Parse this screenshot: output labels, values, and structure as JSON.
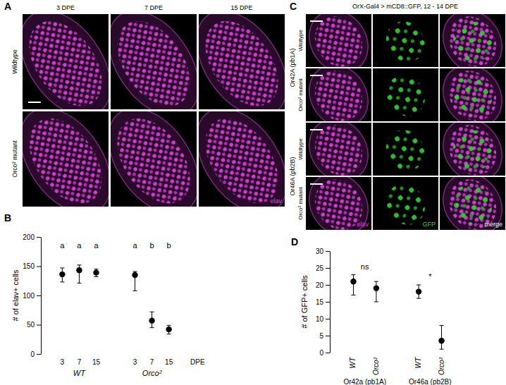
{
  "panels": [
    {
      "label": "A",
      "columns": [
        "3 DPE",
        "7 DPE",
        "15 DPE"
      ],
      "rows": [
        "Wildtype",
        "Orco² mutant"
      ],
      "channels": [
        "elav"
      ]
    },
    {
      "label": "C",
      "title": "OrX-Gal4 > mCD8::GFP, 12 - 14 DPE",
      "columns": [
        "elav",
        "GFP",
        "merge"
      ],
      "groups": [
        "Or42A (pb1A)",
        "Or46A (pb2B)"
      ],
      "rows": [
        "Wildtype",
        "Orco² mutant"
      ]
    }
  ],
  "chart_data": [
    {
      "title": "B",
      "type": "scatter",
      "marker": "circle",
      "y_label": "# of elav+ cells",
      "x_label": "DPE",
      "categories": [
        "3",
        "7",
        "15"
      ],
      "ylim": [
        0,
        200
      ],
      "yticks": [
        0,
        50,
        100,
        150,
        200
      ],
      "series": [
        {
          "name": "WT",
          "color": "#000000",
          "values": [
            136,
            143,
            139
          ],
          "lower": [
            123,
            121,
            132
          ],
          "upper": [
            147,
            152,
            145
          ],
          "annotations": [
            "a",
            "a",
            "a"
          ]
        },
        {
          "name": "Orco²",
          "color": "#000000",
          "values": [
            135,
            57,
            42
          ],
          "lower": [
            108,
            45,
            34
          ],
          "upper": [
            141,
            72,
            49
          ],
          "annotations": [
            "a",
            "b",
            "b"
          ]
        }
      ]
    },
    {
      "title": "D",
      "type": "scatter",
      "marker": "circle",
      "y_label": "# of GFP+ cells",
      "categories": [
        "WT",
        "Orco²"
      ],
      "ylim": [
        0,
        30
      ],
      "yticks": [
        0,
        5,
        10,
        15,
        20,
        25,
        30
      ],
      "series": [
        {
          "name": "Or42a (pb1A)",
          "color": "#000000",
          "values": [
            21,
            19
          ],
          "lower": [
            17,
            15
          ],
          "upper": [
            23,
            21
          ],
          "annotation": "ns"
        },
        {
          "name": "Or46a (pb2B)",
          "color": "#000000",
          "values": [
            18,
            3.5
          ],
          "lower": [
            16,
            1
          ],
          "upper": [
            20,
            8
          ],
          "annotation": "*"
        }
      ]
    }
  ]
}
